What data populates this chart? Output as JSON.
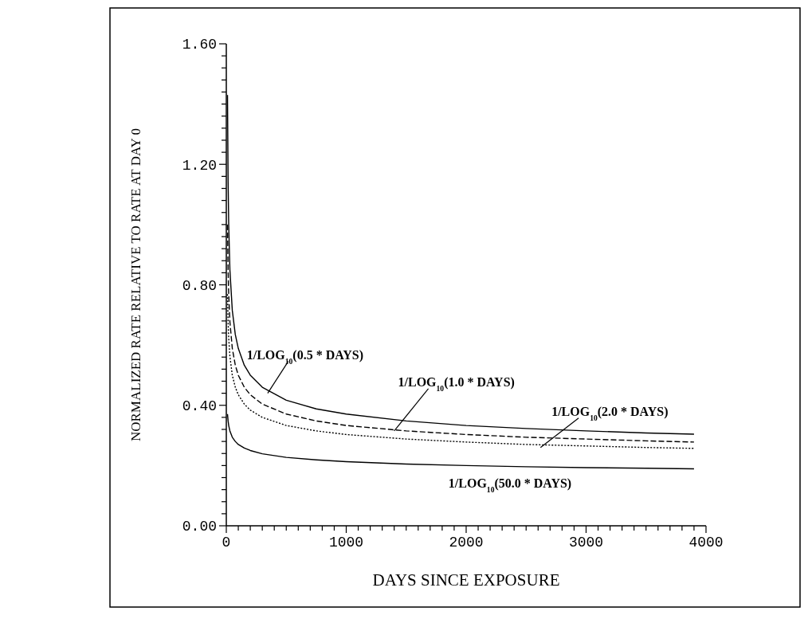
{
  "chart_data": {
    "type": "line",
    "xlabel": "DAYS SINCE EXPOSURE",
    "ylabel": "NORMALIZED RATE RELATIVE TO RATE AT DAY 0",
    "x": [
      10,
      15,
      20,
      30,
      50,
      75,
      100,
      150,
      200,
      300,
      500,
      750,
      1000,
      1500,
      2000,
      2500,
      3000,
      3500,
      3900
    ],
    "series": [
      {
        "color": "#000000",
        "line_style": "solid",
        "values": [
          1.43,
          1.143,
          1.0,
          0.85,
          0.715,
          0.635,
          0.589,
          0.533,
          0.5,
          0.46,
          0.417,
          0.388,
          0.371,
          0.348,
          0.333,
          0.323,
          0.315,
          0.308,
          0.304
        ]
      },
      {
        "color": "#000000",
        "line_style": "dashed",
        "values": [
          1.0,
          0.85,
          0.769,
          0.677,
          0.589,
          0.533,
          0.5,
          0.46,
          0.435,
          0.404,
          0.371,
          0.348,
          0.333,
          0.315,
          0.303,
          0.294,
          0.288,
          0.282,
          0.278
        ]
      },
      {
        "color": "#000000",
        "line_style": "dotted",
        "values": [
          0.769,
          0.677,
          0.624,
          0.562,
          0.5,
          0.46,
          0.435,
          0.404,
          0.384,
          0.36,
          0.333,
          0.315,
          0.303,
          0.288,
          0.278,
          0.27,
          0.265,
          0.26,
          0.257
        ]
      },
      {
        "color": "#000000",
        "line_style": "solid",
        "values": [
          0.371,
          0.348,
          0.333,
          0.315,
          0.294,
          0.28,
          0.27,
          0.258,
          0.25,
          0.239,
          0.227,
          0.219,
          0.213,
          0.205,
          0.2,
          0.196,
          0.193,
          0.191,
          0.189
        ]
      }
    ],
    "annotations": [
      {
        "text": "1/LOG$_{10}$(0.5 * DAYS)",
        "x": 345,
        "y": 0.44
      },
      {
        "text": "1/LOG$_{10}$(1.0 * DAYS)",
        "x": 1400,
        "y": 0.315
      },
      {
        "text": "1/LOG$_{10}$(2.0 * DAYS)",
        "x": 2620,
        "y": 0.26
      },
      "1/LOG$_{10}$(50.0 * DAYS)"
    ],
    "xlim": [
      0,
      4000
    ],
    "xticks": [
      0,
      {
        "value": 100,
        "label": null
      },
      {
        "value": 200,
        "label": null
      },
      {
        "value": 300,
        "label": null
      },
      {
        "value": 400,
        "label": null
      },
      {
        "value": 500,
        "label": null
      },
      {
        "value": 600,
        "label": null
      },
      {
        "value": 700,
        "label": null
      },
      {
        "value": 800,
        "label": null
      },
      {
        "value": 900,
        "label": null
      },
      1000,
      {
        "value": 1100,
        "label": null
      },
      {
        "value": 1200,
        "label": null
      },
      {
        "value": 1300,
        "label": null
      },
      {
        "value": 1400,
        "label": null
      },
      {
        "value": 1500,
        "label": null
      },
      {
        "value": 1600,
        "label": null
      },
      {
        "value": 1700,
        "label": null
      },
      {
        "value": 1800,
        "label": null
      },
      {
        "value": 1900,
        "label": null
      },
      2000,
      {
        "value": 2100,
        "label": null
      },
      {
        "value": 2200,
        "label": null
      },
      {
        "value": 2300,
        "label": null
      },
      {
        "value": 2400,
        "label": null
      },
      {
        "value": 2500,
        "label": null
      },
      {
        "value": 2600,
        "label": null
      },
      {
        "value": 2700,
        "label": null
      },
      {
        "value": 2800,
        "label": null
      },
      {
        "value": 2900,
        "label": null
      },
      3000,
      {
        "value": 3100,
        "label": null
      },
      {
        "value": 3200,
        "label": null
      },
      {
        "value": 3300,
        "label": null
      },
      {
        "value": 3400,
        "label": null
      },
      {
        "value": 3500,
        "label": null
      },
      {
        "value": 3600,
        "label": null
      },
      {
        "value": 3700,
        "label": null
      },
      {
        "value": 3800,
        "label": null
      },
      {
        "value": 3900,
        "label": null
      },
      4000
    ],
    "ylim": [
      0,
      1.6
    ],
    "yticks": [
      {
        "value": 0,
        "label": "0.00"
      },
      {
        "value": 0.04,
        "label": null
      },
      {
        "value": 0.08,
        "label": null
      },
      {
        "value": 0.12,
        "label": null
      },
      {
        "value": 0.16,
        "label": null
      },
      {
        "value": 0.2,
        "label": null
      },
      {
        "value": 0.24,
        "label": null
      },
      {
        "value": 0.28,
        "label": null
      },
      {
        "value": 0.32,
        "label": null
      },
      {
        "value": 0.36,
        "label": null
      },
      {
        "value": 0.4,
        "label": "0.40"
      },
      {
        "value": 0.44,
        "label": null
      },
      {
        "value": 0.48,
        "label": null
      },
      {
        "value": 0.52,
        "label": null
      },
      {
        "value": 0.56,
        "label": null
      },
      {
        "value": 0.6,
        "label": null
      },
      {
        "value": 0.64,
        "label": null
      },
      {
        "value": 0.68,
        "label": null
      },
      {
        "value": 0.72,
        "label": null
      },
      {
        "value": 0.76,
        "label": null
      },
      {
        "value": 0.8,
        "label": "0.80"
      },
      {
        "value": 0.84,
        "label": null
      },
      {
        "value": 0.88,
        "label": null
      },
      {
        "value": 0.92,
        "label": null
      },
      {
        "value": 0.96,
        "label": null
      },
      {
        "value": 1.0,
        "label": null
      },
      {
        "value": 1.04,
        "label": null
      },
      {
        "value": 1.08,
        "label": null
      },
      {
        "value": 1.12,
        "label": null
      },
      {
        "value": 1.16,
        "label": null
      },
      {
        "value": 1.2,
        "label": "1.20"
      },
      {
        "value": 1.24,
        "label": null
      },
      {
        "value": 1.28,
        "label": null
      },
      {
        "value": 1.32,
        "label": null
      },
      {
        "value": 1.36,
        "label": null
      },
      {
        "value": 1.4,
        "label": null
      },
      {
        "value": 1.44,
        "label": null
      },
      {
        "value": 1.48,
        "label": null
      },
      {
        "value": 1.52,
        "label": null
      },
      {
        "value": 1.56,
        "label": null
      },
      {
        "value": 1.6,
        "label": "1.60"
      }
    ],
    "grid": false
  }
}
